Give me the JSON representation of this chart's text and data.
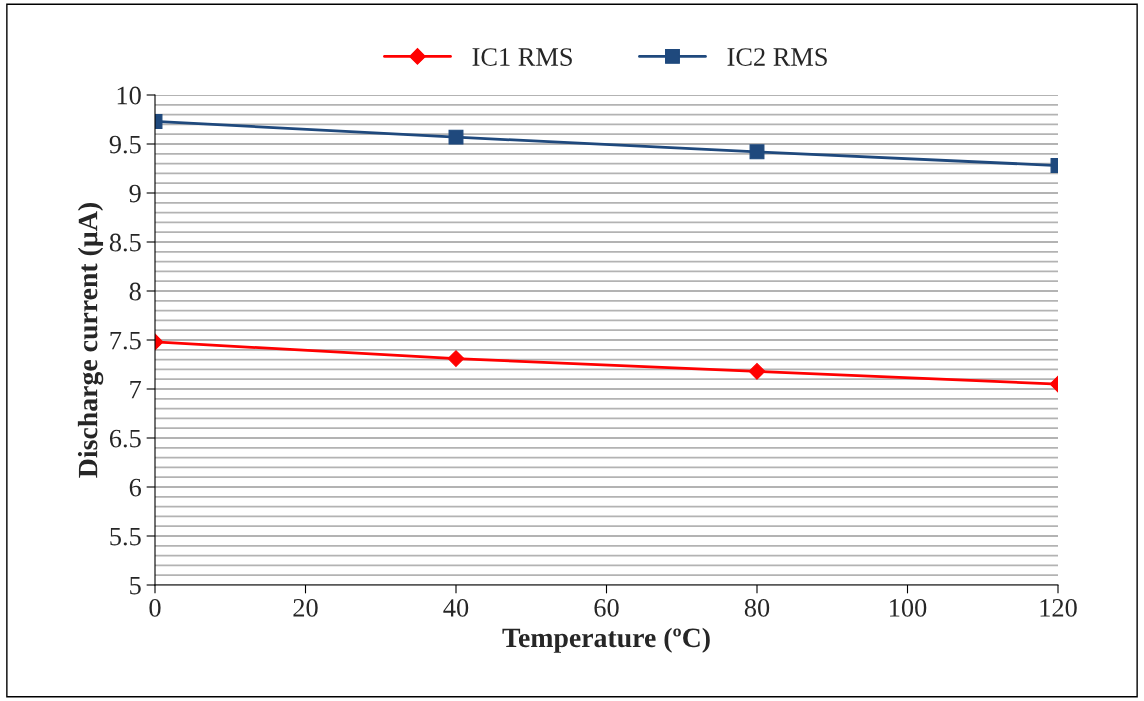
{
  "chart_data": {
    "type": "line",
    "xlabel": "Temperature (ºC)",
    "ylabel": "Discharge current (µA)",
    "x": [
      0,
      40,
      80,
      120
    ],
    "series": [
      {
        "name": "IC1 RMS",
        "color": "#ff0000",
        "marker": "diamond",
        "values": [
          7.48,
          7.31,
          7.18,
          7.05
        ]
      },
      {
        "name": "IC2 RMS",
        "color": "#1f497d",
        "marker": "square",
        "values": [
          9.73,
          9.57,
          9.42,
          9.28
        ]
      }
    ],
    "xlim": [
      0,
      120
    ],
    "xticks": [
      0,
      20,
      40,
      60,
      80,
      100,
      120
    ],
    "ylim": [
      5,
      10
    ],
    "yticks": [
      5,
      {
        "value": 5.1,
        "label": null
      },
      {
        "value": 5.2,
        "label": null
      },
      {
        "value": 5.3,
        "label": null
      },
      {
        "value": 5.4,
        "label": null
      },
      5.5,
      {
        "value": 5.6,
        "label": null
      },
      {
        "value": 5.7,
        "label": null
      },
      {
        "value": 5.8,
        "label": null
      },
      {
        "value": 5.9,
        "label": null
      },
      6,
      {
        "value": 6.1,
        "label": null
      },
      {
        "value": 6.2,
        "label": null
      },
      {
        "value": 6.3,
        "label": null
      },
      {
        "value": 6.4,
        "label": null
      },
      6.5,
      {
        "value": 6.6,
        "label": null
      },
      {
        "value": 6.7,
        "label": null
      },
      {
        "value": 6.8,
        "label": null
      },
      {
        "value": 6.9,
        "label": null
      },
      7,
      {
        "value": 7.1,
        "label": null
      },
      {
        "value": 7.2,
        "label": null
      },
      {
        "value": 7.3,
        "label": null
      },
      {
        "value": 7.4,
        "label": null
      },
      7.5,
      {
        "value": 7.6,
        "label": null
      },
      {
        "value": 7.7,
        "label": null
      },
      {
        "value": 7.8,
        "label": null
      },
      {
        "value": 7.9,
        "label": null
      },
      8,
      {
        "value": 8.1,
        "label": null
      },
      {
        "value": 8.2,
        "label": null
      },
      {
        "value": 8.3,
        "label": null
      },
      {
        "value": 8.4,
        "label": null
      },
      8.5,
      {
        "value": 8.6,
        "label": null
      },
      {
        "value": 8.7,
        "label": null
      },
      {
        "value": 8.8,
        "label": null
      },
      {
        "value": 8.9,
        "label": null
      },
      9,
      {
        "value": 9.1,
        "label": null
      },
      {
        "value": 9.2,
        "label": null
      },
      {
        "value": 9.3,
        "label": null
      },
      {
        "value": 9.4,
        "label": null
      },
      9.5,
      {
        "value": 9.6,
        "label": null
      },
      {
        "value": 9.7,
        "label": null
      },
      {
        "value": 9.8,
        "label": null
      },
      {
        "value": 9.9,
        "label": null
      },
      10
    ],
    "grid": "y",
    "legend": "top",
    "line_style": "solid"
  }
}
